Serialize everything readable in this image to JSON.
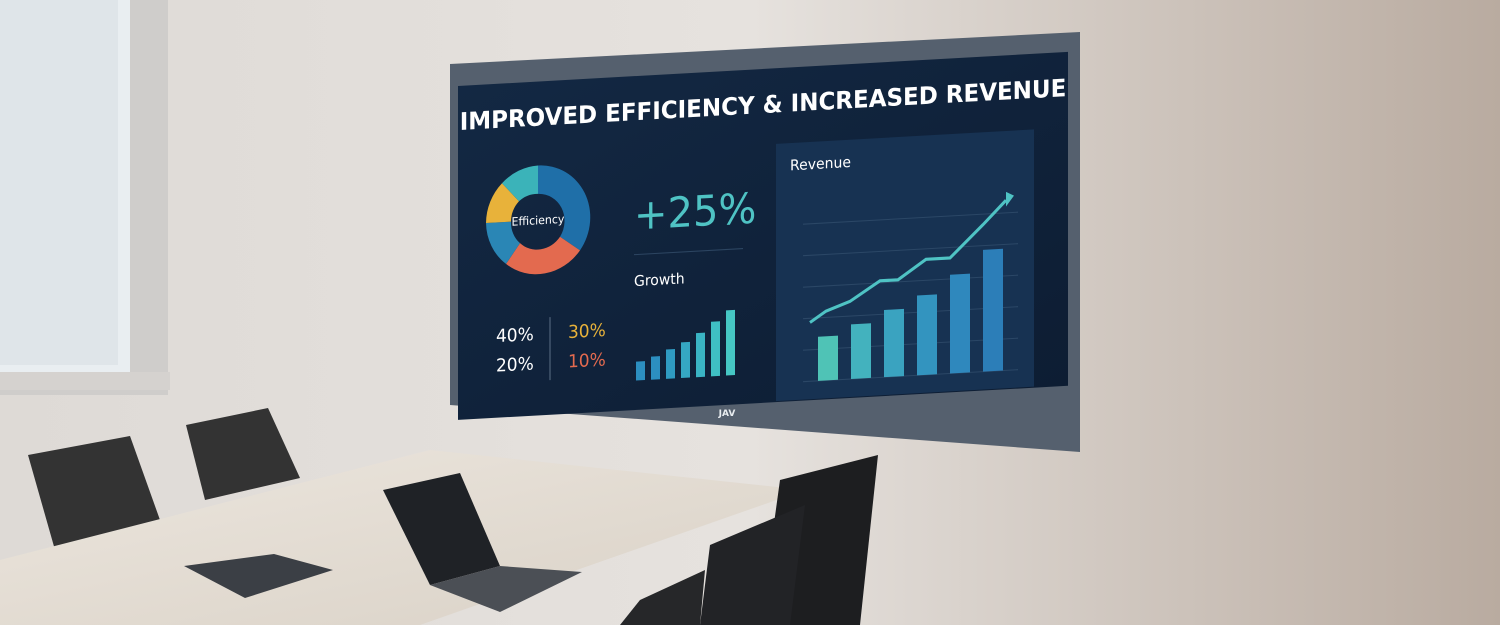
{
  "screen": {
    "title": "IMPROVED EFFICIENCY & INCREASED REVENUE",
    "donut_label": "Efficiency",
    "shares": [
      "40%",
      "30%",
      "20%",
      "10%"
    ],
    "headline": "+25%",
    "growth_label": "Growth",
    "revenue_label": "Revenue"
  },
  "brand": "JAV"
}
